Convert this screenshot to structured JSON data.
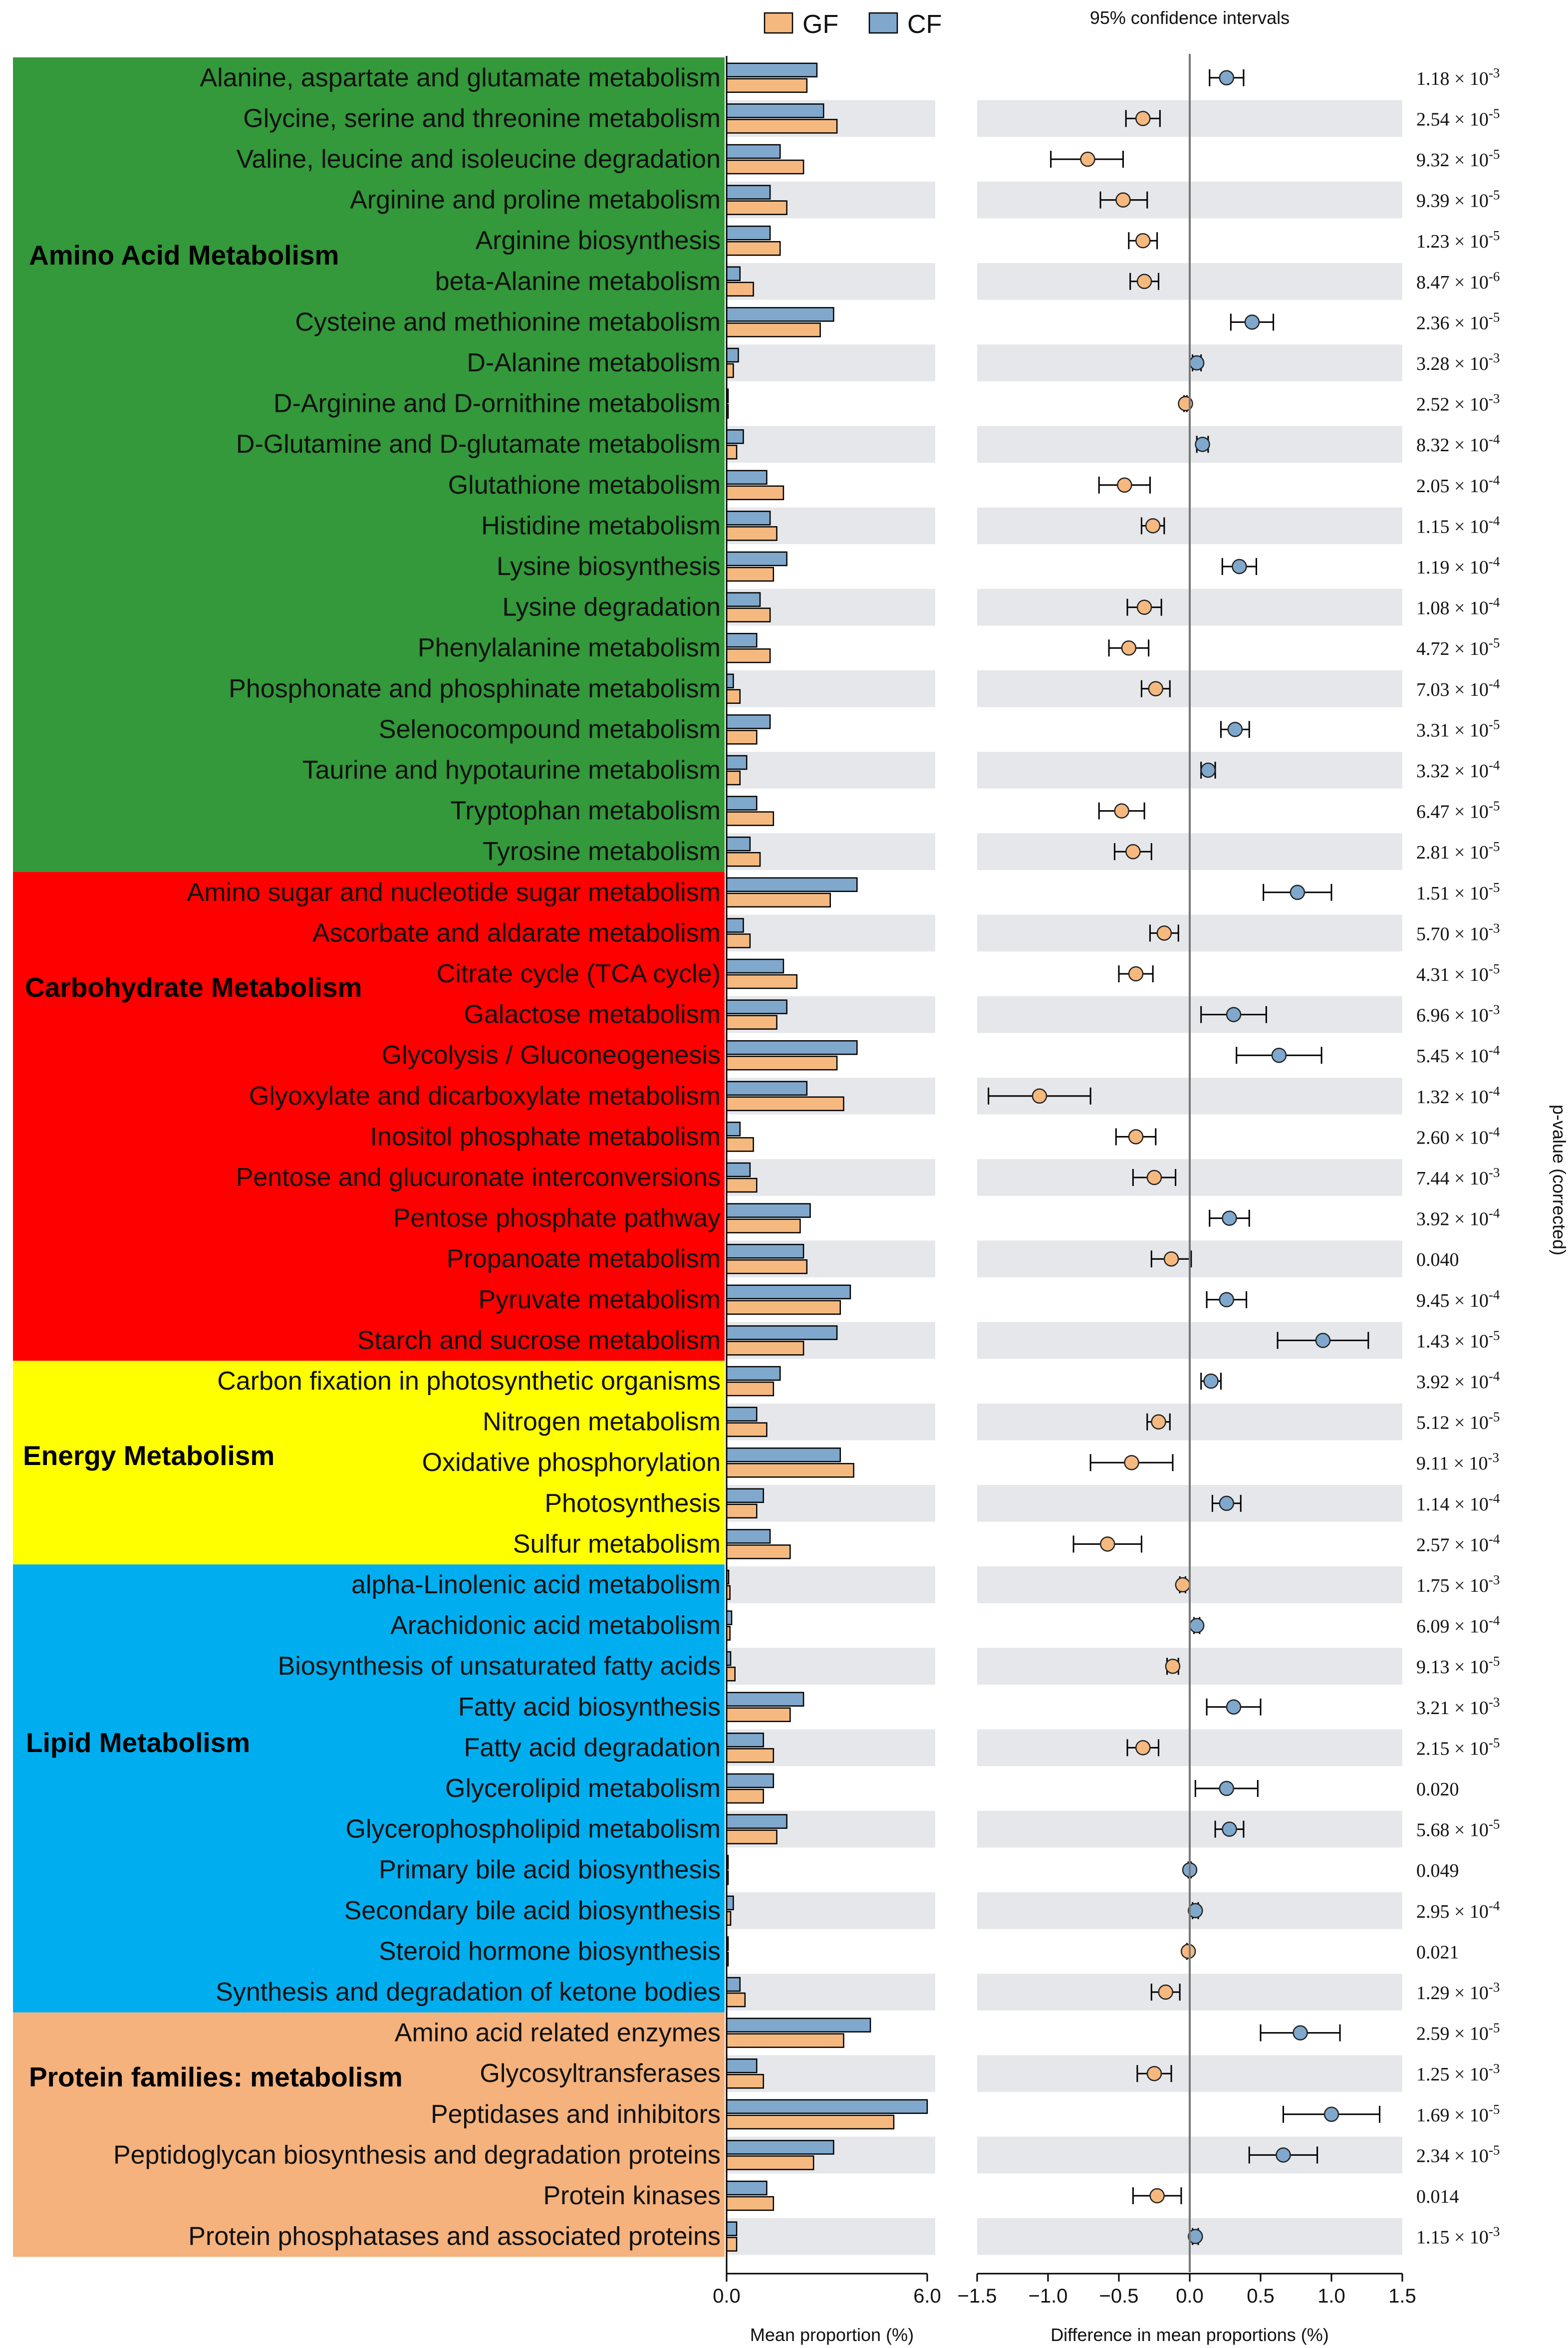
{
  "legend": {
    "series": [
      {
        "name": "GF",
        "color": "#f5b97f"
      },
      {
        "name": "CF",
        "color": "#7fa8cc"
      }
    ]
  },
  "colors": {
    "row_shade": "#e5e7ea",
    "zero_line": "#777777",
    "bar_edge": "#000000"
  },
  "left_axis": {
    "label": "Mean proportion (%)",
    "ticks": [
      "0.0",
      "6.0"
    ],
    "range": [
      0,
      6
    ]
  },
  "right_axis": {
    "label": "Difference in mean proportions (%)",
    "ticks": [
      "−1.5",
      "−1.0",
      "−0.5",
      "0.0",
      "0.5",
      "1.0",
      "1.5"
    ],
    "range": [
      -1.5,
      1.5
    ]
  },
  "ci_title": "95% confidence intervals",
  "pvalue_label": "p-value (corrected)",
  "chart_data": {
    "type": "bar",
    "groups": [
      {
        "name": "Amino Acid Metabolism",
        "color": "#33993a",
        "rows": [
          0,
          19
        ]
      },
      {
        "name": "Carbohydrate Metabolism",
        "color": "#ff0000",
        "rows": [
          20,
          31
        ]
      },
      {
        "name": "Energy Metabolism",
        "color": "#ffff00",
        "rows": [
          32,
          36
        ]
      },
      {
        "name": "Lipid Metabolism",
        "color": "#00aeef",
        "rows": [
          37,
          47
        ]
      },
      {
        "name": "Protein families: metabolism",
        "color": "#f5b27c",
        "rows": [
          48,
          53
        ]
      }
    ],
    "pathways": [
      {
        "name": "Alanine, aspartate and glutamate metabolism",
        "gf": 2.4,
        "cf": 2.7,
        "diff": 0.26,
        "ci": [
          0.14,
          0.38
        ],
        "p_mant": "1.18",
        "p_exp": "-3"
      },
      {
        "name": "Glycine, serine and threonine metabolism",
        "gf": 3.3,
        "cf": 2.9,
        "diff": -0.33,
        "ci": [
          -0.45,
          -0.21
        ],
        "p_mant": "2.54",
        "p_exp": "-5"
      },
      {
        "name": "Valine, leucine and isoleucine degradation",
        "gf": 2.3,
        "cf": 1.6,
        "diff": -0.72,
        "ci": [
          -0.98,
          -0.47
        ],
        "p_mant": "9.32",
        "p_exp": "-5"
      },
      {
        "name": "Arginine and proline metabolism",
        "gf": 1.8,
        "cf": 1.3,
        "diff": -0.47,
        "ci": [
          -0.63,
          -0.3
        ],
        "p_mant": "9.39",
        "p_exp": "-5"
      },
      {
        "name": "Arginine biosynthesis",
        "gf": 1.6,
        "cf": 1.3,
        "diff": -0.33,
        "ci": [
          -0.43,
          -0.23
        ],
        "p_mant": "1.23",
        "p_exp": "-5"
      },
      {
        "name": "beta-Alanine metabolism",
        "gf": 0.8,
        "cf": 0.4,
        "diff": -0.32,
        "ci": [
          -0.42,
          -0.22
        ],
        "p_mant": "8.47",
        "p_exp": "-6"
      },
      {
        "name": "Cysteine and methionine metabolism",
        "gf": 2.8,
        "cf": 3.2,
        "diff": 0.44,
        "ci": [
          0.29,
          0.59
        ],
        "p_mant": "2.36",
        "p_exp": "-5"
      },
      {
        "name": "D-Alanine metabolism",
        "gf": 0.2,
        "cf": 0.35,
        "diff": 0.05,
        "ci": [
          0.02,
          0.08
        ],
        "p_mant": "3.28",
        "p_exp": "-3"
      },
      {
        "name": "D-Arginine and D-ornithine metabolism",
        "gf": 0.04,
        "cf": 0.02,
        "diff": -0.03,
        "ci": [
          -0.04,
          -0.02
        ],
        "p_mant": "2.52",
        "p_exp": "-3"
      },
      {
        "name": "D-Glutamine and D-glutamate metabolism",
        "gf": 0.3,
        "cf": 0.5,
        "diff": 0.09,
        "ci": [
          0.05,
          0.13
        ],
        "p_mant": "8.32",
        "p_exp": "-4"
      },
      {
        "name": "Glutathione metabolism",
        "gf": 1.7,
        "cf": 1.2,
        "diff": -0.46,
        "ci": [
          -0.64,
          -0.28
        ],
        "p_mant": "2.05",
        "p_exp": "-4"
      },
      {
        "name": "Histidine metabolism",
        "gf": 1.5,
        "cf": 1.3,
        "diff": -0.26,
        "ci": [
          -0.34,
          -0.18
        ],
        "p_mant": "1.15",
        "p_exp": "-4"
      },
      {
        "name": "Lysine biosynthesis",
        "gf": 1.4,
        "cf": 1.8,
        "diff": 0.35,
        "ci": [
          0.23,
          0.47
        ],
        "p_mant": "1.19",
        "p_exp": "-4"
      },
      {
        "name": "Lysine degradation",
        "gf": 1.3,
        "cf": 1.0,
        "diff": -0.32,
        "ci": [
          -0.44,
          -0.2
        ],
        "p_mant": "1.08",
        "p_exp": "-4"
      },
      {
        "name": "Phenylalanine metabolism",
        "gf": 1.3,
        "cf": 0.9,
        "diff": -0.43,
        "ci": [
          -0.57,
          -0.29
        ],
        "p_mant": "4.72",
        "p_exp": "-5"
      },
      {
        "name": "Phosphonate and phosphinate metabolism",
        "gf": 0.4,
        "cf": 0.2,
        "diff": -0.24,
        "ci": [
          -0.34,
          -0.14
        ],
        "p_mant": "7.03",
        "p_exp": "-4"
      },
      {
        "name": "Selenocompound metabolism",
        "gf": 0.9,
        "cf": 1.3,
        "diff": 0.32,
        "ci": [
          0.22,
          0.42
        ],
        "p_mant": "3.31",
        "p_exp": "-5"
      },
      {
        "name": "Taurine and hypotaurine metabolism",
        "gf": 0.4,
        "cf": 0.6,
        "diff": 0.13,
        "ci": [
          0.08,
          0.18
        ],
        "p_mant": "3.32",
        "p_exp": "-4"
      },
      {
        "name": "Tryptophan metabolism",
        "gf": 1.4,
        "cf": 0.9,
        "diff": -0.48,
        "ci": [
          -0.64,
          -0.32
        ],
        "p_mant": "6.47",
        "p_exp": "-5"
      },
      {
        "name": "Tyrosine metabolism",
        "gf": 1.0,
        "cf": 0.7,
        "diff": -0.4,
        "ci": [
          -0.53,
          -0.27
        ],
        "p_mant": "2.81",
        "p_exp": "-5"
      },
      {
        "name": "Amino sugar and nucleotide sugar metabolism",
        "gf": 3.1,
        "cf": 3.9,
        "diff": 0.76,
        "ci": [
          0.52,
          1.0
        ],
        "p_mant": "1.51",
        "p_exp": "-5"
      },
      {
        "name": "Ascorbate and aldarate metabolism",
        "gf": 0.7,
        "cf": 0.5,
        "diff": -0.18,
        "ci": [
          -0.28,
          -0.08
        ],
        "p_mant": "5.70",
        "p_exp": "-3"
      },
      {
        "name": "Citrate cycle (TCA cycle)",
        "gf": 2.1,
        "cf": 1.7,
        "diff": -0.38,
        "ci": [
          -0.5,
          -0.26
        ],
        "p_mant": "4.31",
        "p_exp": "-5"
      },
      {
        "name": "Galactose metabolism",
        "gf": 1.5,
        "cf": 1.8,
        "diff": 0.31,
        "ci": [
          0.08,
          0.54
        ],
        "p_mant": "6.96",
        "p_exp": "-3"
      },
      {
        "name": "Glycolysis / Gluconeogenesis",
        "gf": 3.3,
        "cf": 3.9,
        "diff": 0.63,
        "ci": [
          0.33,
          0.93
        ],
        "p_mant": "5.45",
        "p_exp": "-4"
      },
      {
        "name": "Glyoxylate and dicarboxylate metabolism",
        "gf": 3.5,
        "cf": 2.4,
        "diff": -1.06,
        "ci": [
          -1.42,
          -0.7
        ],
        "p_mant": "1.32",
        "p_exp": "-4"
      },
      {
        "name": "Inositol phosphate metabolism",
        "gf": 0.8,
        "cf": 0.4,
        "diff": -0.38,
        "ci": [
          -0.52,
          -0.24
        ],
        "p_mant": "2.60",
        "p_exp": "-4"
      },
      {
        "name": "Pentose and glucuronate interconversions",
        "gf": 0.9,
        "cf": 0.7,
        "diff": -0.25,
        "ci": [
          -0.4,
          -0.1
        ],
        "p_mant": "7.44",
        "p_exp": "-3"
      },
      {
        "name": "Pentose phosphate pathway",
        "gf": 2.2,
        "cf": 2.5,
        "diff": 0.28,
        "ci": [
          0.14,
          0.42
        ],
        "p_mant": "3.92",
        "p_exp": "-4"
      },
      {
        "name": "Propanoate metabolism",
        "gf": 2.4,
        "cf": 2.3,
        "diff": -0.13,
        "ci": [
          -0.27,
          0.01
        ],
        "p_mant": "0.040",
        "p_exp": ""
      },
      {
        "name": "Pyruvate metabolism",
        "gf": 3.4,
        "cf": 3.7,
        "diff": 0.26,
        "ci": [
          0.12,
          0.4
        ],
        "p_mant": "9.45",
        "p_exp": "-4"
      },
      {
        "name": "Starch and sucrose metabolism",
        "gf": 2.3,
        "cf": 3.3,
        "diff": 0.94,
        "ci": [
          0.62,
          1.26
        ],
        "p_mant": "1.43",
        "p_exp": "-5"
      },
      {
        "name": "Carbon fixation in photosynthetic organisms",
        "gf": 1.4,
        "cf": 1.6,
        "diff": 0.15,
        "ci": [
          0.08,
          0.22
        ],
        "p_mant": "3.92",
        "p_exp": "-4"
      },
      {
        "name": "Nitrogen metabolism",
        "gf": 1.2,
        "cf": 0.9,
        "diff": -0.22,
        "ci": [
          -0.3,
          -0.14
        ],
        "p_mant": "5.12",
        "p_exp": "-5"
      },
      {
        "name": "Oxidative phosphorylation",
        "gf": 3.8,
        "cf": 3.4,
        "diff": -0.41,
        "ci": [
          -0.7,
          -0.12
        ],
        "p_mant": "9.11",
        "p_exp": "-3"
      },
      {
        "name": "Photosynthesis",
        "gf": 0.9,
        "cf": 1.1,
        "diff": 0.26,
        "ci": [
          0.16,
          0.36
        ],
        "p_mant": "1.14",
        "p_exp": "-4"
      },
      {
        "name": "Sulfur metabolism",
        "gf": 1.9,
        "cf": 1.3,
        "diff": -0.58,
        "ci": [
          -0.82,
          -0.34
        ],
        "p_mant": "2.57",
        "p_exp": "-4"
      },
      {
        "name": "alpha-Linolenic acid metabolism",
        "gf": 0.1,
        "cf": 0.06,
        "diff": -0.05,
        "ci": [
          -0.07,
          -0.03
        ],
        "p_mant": "1.75",
        "p_exp": "-3"
      },
      {
        "name": "Arachidonic acid metabolism",
        "gf": 0.1,
        "cf": 0.15,
        "diff": 0.05,
        "ci": [
          0.03,
          0.07
        ],
        "p_mant": "6.09",
        "p_exp": "-4"
      },
      {
        "name": "Biosynthesis of unsaturated fatty acids",
        "gf": 0.25,
        "cf": 0.12,
        "diff": -0.12,
        "ci": [
          -0.16,
          -0.08
        ],
        "p_mant": "9.13",
        "p_exp": "-5"
      },
      {
        "name": "Fatty acid biosynthesis",
        "gf": 1.9,
        "cf": 2.3,
        "diff": 0.31,
        "ci": [
          0.12,
          0.5
        ],
        "p_mant": "3.21",
        "p_exp": "-3"
      },
      {
        "name": "Fatty acid degradation",
        "gf": 1.4,
        "cf": 1.1,
        "diff": -0.33,
        "ci": [
          -0.44,
          -0.22
        ],
        "p_mant": "2.15",
        "p_exp": "-5"
      },
      {
        "name": "Glycerolipid metabolism",
        "gf": 1.1,
        "cf": 1.4,
        "diff": 0.26,
        "ci": [
          0.04,
          0.48
        ],
        "p_mant": "0.020",
        "p_exp": ""
      },
      {
        "name": "Glycerophospholipid metabolism",
        "gf": 1.5,
        "cf": 1.8,
        "diff": 0.28,
        "ci": [
          0.18,
          0.38
        ],
        "p_mant": "5.68",
        "p_exp": "-5"
      },
      {
        "name": "Primary bile acid biosynthesis",
        "gf": 0.02,
        "cf": 0.04,
        "diff": 0.0,
        "ci": [
          -0.01,
          0.01
        ],
        "p_mant": "0.049",
        "p_exp": ""
      },
      {
        "name": "Secondary bile acid biosynthesis",
        "gf": 0.12,
        "cf": 0.2,
        "diff": 0.04,
        "ci": [
          0.02,
          0.06
        ],
        "p_mant": "2.95",
        "p_exp": "-4"
      },
      {
        "name": "Steroid hormone biosynthesis",
        "gf": 0.03,
        "cf": 0.01,
        "diff": -0.01,
        "ci": [
          -0.02,
          0.0
        ],
        "p_mant": "0.021",
        "p_exp": ""
      },
      {
        "name": "Synthesis and degradation of ketone bodies",
        "gf": 0.55,
        "cf": 0.4,
        "diff": -0.17,
        "ci": [
          -0.27,
          -0.07
        ],
        "p_mant": "1.29",
        "p_exp": "-3"
      },
      {
        "name": "Amino acid related enzymes",
        "gf": 3.5,
        "cf": 4.3,
        "diff": 0.78,
        "ci": [
          0.5,
          1.06
        ],
        "p_mant": "2.59",
        "p_exp": "-5"
      },
      {
        "name": "Glycosyltransferases",
        "gf": 1.1,
        "cf": 0.9,
        "diff": -0.25,
        "ci": [
          -0.37,
          -0.13
        ],
        "p_mant": "1.25",
        "p_exp": "-3"
      },
      {
        "name": "Peptidases and inhibitors",
        "gf": 5.0,
        "cf": 6.0,
        "diff": 1.0,
        "ci": [
          0.66,
          1.34
        ],
        "p_mant": "1.69",
        "p_exp": "-5"
      },
      {
        "name": "Peptidoglycan biosynthesis and degradation proteins",
        "gf": 2.6,
        "cf": 3.2,
        "diff": 0.66,
        "ci": [
          0.42,
          0.9
        ],
        "p_mant": "2.34",
        "p_exp": "-5"
      },
      {
        "name": "Protein kinases",
        "gf": 1.4,
        "cf": 1.2,
        "diff": -0.23,
        "ci": [
          -0.4,
          -0.06
        ],
        "p_mant": "0.014",
        "p_exp": ""
      },
      {
        "name": "Protein phosphatases and associated proteins",
        "gf": 0.3,
        "cf": 0.3,
        "diff": 0.04,
        "ci": [
          0.02,
          0.06
        ],
        "p_mant": "1.15",
        "p_exp": "-3"
      }
    ]
  }
}
